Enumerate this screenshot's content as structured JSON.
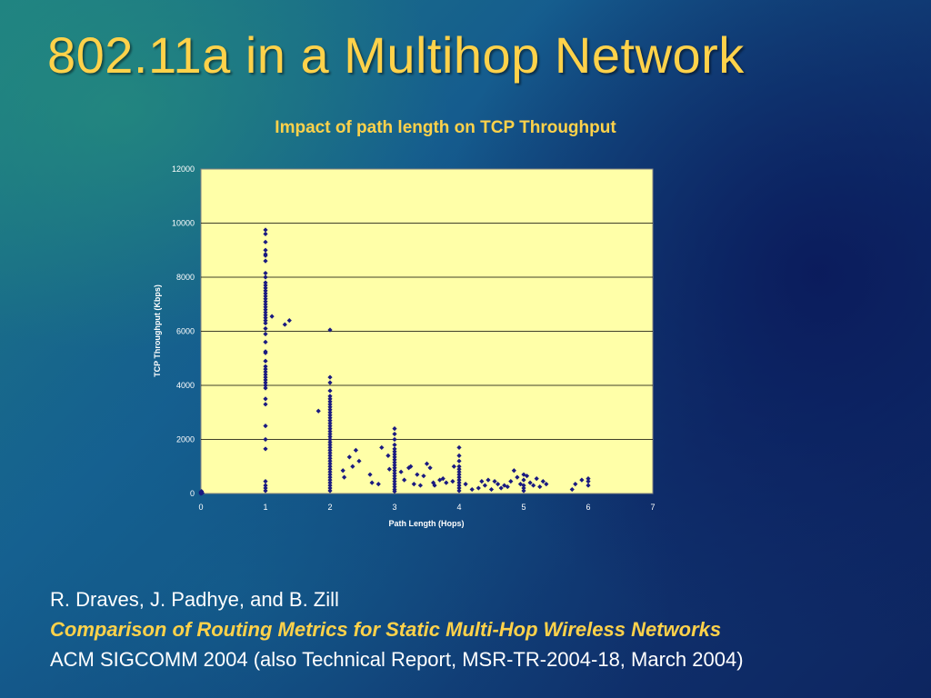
{
  "slide": {
    "title": "802.11a in a Multihop Network",
    "authors": "R. Draves, J. Padhye, and B. Zill",
    "paper_title": "Comparison of Routing Metrics for Static Multi-Hop Wireless Networks",
    "venue": "ACM SIGCOMM 2004 (also Technical Report, MSR-TR-2004-18, March 2004)"
  },
  "colors": {
    "title": "#ffd24a",
    "plot_bg": "#ffffa8",
    "points": "#1a1a80",
    "gridline": "#000000"
  },
  "chart_data": {
    "type": "scatter",
    "title": "Impact of path length on TCP Throughput",
    "xlabel": "Path Length (Hops)",
    "ylabel": "TCP Throughput (Kbps)",
    "xlim": [
      0,
      7
    ],
    "ylim": [
      0,
      12000
    ],
    "xticks": [
      0,
      1,
      2,
      3,
      4,
      5,
      6,
      7
    ],
    "yticks": [
      0,
      2000,
      4000,
      6000,
      8000,
      10000,
      12000
    ],
    "grid": "horizontal",
    "legend": "none",
    "points": [
      [
        0,
        0
      ],
      [
        0,
        50
      ],
      [
        0.02,
        20
      ],
      [
        0.01,
        80
      ],
      [
        1,
        9750
      ],
      [
        1,
        9600
      ],
      [
        1,
        9300
      ],
      [
        1,
        9000
      ],
      [
        1,
        8850
      ],
      [
        1,
        8800
      ],
      [
        1,
        8600
      ],
      [
        1,
        8150
      ],
      [
        1,
        8000
      ],
      [
        1,
        7800
      ],
      [
        1,
        7700
      ],
      [
        1,
        7600
      ],
      [
        1,
        7500
      ],
      [
        1,
        7400
      ],
      [
        1,
        7300
      ],
      [
        1,
        7200
      ],
      [
        1,
        7100
      ],
      [
        1,
        7000
      ],
      [
        1,
        6900
      ],
      [
        1,
        6800
      ],
      [
        1,
        6700
      ],
      [
        1,
        6600
      ],
      [
        1,
        6500
      ],
      [
        1,
        6400
      ],
      [
        1,
        6300
      ],
      [
        1,
        6100
      ],
      [
        1,
        5900
      ],
      [
        1,
        5600
      ],
      [
        1,
        5250
      ],
      [
        1,
        5200
      ],
      [
        1,
        4900
      ],
      [
        1,
        4700
      ],
      [
        1,
        4600
      ],
      [
        1,
        4500
      ],
      [
        1,
        4400
      ],
      [
        1,
        4300
      ],
      [
        1,
        4200
      ],
      [
        1,
        4100
      ],
      [
        1,
        4000
      ],
      [
        1,
        3900
      ],
      [
        1,
        3500
      ],
      [
        1,
        3300
      ],
      [
        1,
        2500
      ],
      [
        1,
        2000
      ],
      [
        1,
        1650
      ],
      [
        1,
        450
      ],
      [
        1,
        300
      ],
      [
        1,
        200
      ],
      [
        1,
        100
      ],
      [
        1.1,
        6550
      ],
      [
        1.3,
        6250
      ],
      [
        1.37,
        6400
      ],
      [
        2,
        6050
      ],
      [
        2,
        4300
      ],
      [
        2,
        4100
      ],
      [
        2,
        3800
      ],
      [
        2,
        3600
      ],
      [
        2,
        3500
      ],
      [
        2,
        3400
      ],
      [
        2,
        3300
      ],
      [
        2,
        3200
      ],
      [
        2,
        3100
      ],
      [
        2,
        3000
      ],
      [
        2,
        2900
      ],
      [
        2,
        2800
      ],
      [
        2,
        2700
      ],
      [
        2,
        2600
      ],
      [
        2,
        2500
      ],
      [
        2,
        2400
      ],
      [
        2,
        2300
      ],
      [
        2,
        2200
      ],
      [
        2,
        2100
      ],
      [
        2,
        2000
      ],
      [
        2,
        1900
      ],
      [
        2,
        1800
      ],
      [
        2,
        1700
      ],
      [
        2,
        1600
      ],
      [
        2,
        1500
      ],
      [
        2,
        1400
      ],
      [
        2,
        1300
      ],
      [
        2,
        1200
      ],
      [
        2,
        1100
      ],
      [
        2,
        1000
      ],
      [
        2,
        900
      ],
      [
        2,
        800
      ],
      [
        2,
        700
      ],
      [
        2,
        600
      ],
      [
        2,
        500
      ],
      [
        2,
        400
      ],
      [
        2,
        300
      ],
      [
        2,
        200
      ],
      [
        2,
        100
      ],
      [
        1.82,
        3050
      ],
      [
        2.2,
        850
      ],
      [
        2.22,
        600
      ],
      [
        2.3,
        1350
      ],
      [
        2.35,
        1000
      ],
      [
        2.4,
        1600
      ],
      [
        2.45,
        1200
      ],
      [
        2.62,
        700
      ],
      [
        2.65,
        400
      ],
      [
        2.75,
        350
      ],
      [
        2.8,
        1700
      ],
      [
        2.9,
        1400
      ],
      [
        2.92,
        900
      ],
      [
        3,
        2400
      ],
      [
        3,
        2200
      ],
      [
        3,
        2000
      ],
      [
        3,
        1800
      ],
      [
        3,
        1650
      ],
      [
        3,
        1550
      ],
      [
        3,
        1450
      ],
      [
        3,
        1350
      ],
      [
        3,
        1250
      ],
      [
        3,
        1150
      ],
      [
        3,
        1050
      ],
      [
        3,
        950
      ],
      [
        3,
        850
      ],
      [
        3,
        750
      ],
      [
        3,
        650
      ],
      [
        3,
        550
      ],
      [
        3,
        450
      ],
      [
        3,
        350
      ],
      [
        3,
        250
      ],
      [
        3,
        150
      ],
      [
        3,
        80
      ],
      [
        3.1,
        800
      ],
      [
        3.15,
        500
      ],
      [
        3.22,
        950
      ],
      [
        3.25,
        1000
      ],
      [
        3.3,
        350
      ],
      [
        3.35,
        700
      ],
      [
        3.4,
        300
      ],
      [
        3.45,
        650
      ],
      [
        3.5,
        1100
      ],
      [
        3.55,
        950
      ],
      [
        3.6,
        400
      ],
      [
        3.62,
        300
      ],
      [
        3.7,
        500
      ],
      [
        3.75,
        550
      ],
      [
        3.8,
        400
      ],
      [
        3.9,
        450
      ],
      [
        3.92,
        1000
      ],
      [
        4,
        1700
      ],
      [
        4,
        1400
      ],
      [
        4,
        1200
      ],
      [
        4,
        1000
      ],
      [
        4,
        900
      ],
      [
        4,
        800
      ],
      [
        4,
        700
      ],
      [
        4,
        600
      ],
      [
        4,
        500
      ],
      [
        4,
        400
      ],
      [
        4,
        300
      ],
      [
        4,
        200
      ],
      [
        4,
        100
      ],
      [
        4.1,
        350
      ],
      [
        4.2,
        150
      ],
      [
        4.3,
        200
      ],
      [
        4.35,
        450
      ],
      [
        4.4,
        300
      ],
      [
        4.45,
        500
      ],
      [
        4.5,
        150
      ],
      [
        4.55,
        450
      ],
      [
        4.6,
        350
      ],
      [
        4.65,
        200
      ],
      [
        4.7,
        300
      ],
      [
        4.75,
        250
      ],
      [
        4.8,
        450
      ],
      [
        4.85,
        850
      ],
      [
        4.9,
        600
      ],
      [
        4.95,
        350
      ],
      [
        5,
        200
      ],
      [
        5,
        300
      ],
      [
        5,
        700
      ],
      [
        5,
        500
      ],
      [
        5,
        100
      ],
      [
        5.05,
        650
      ],
      [
        5.1,
        400
      ],
      [
        5.15,
        300
      ],
      [
        5.2,
        550
      ],
      [
        5.25,
        250
      ],
      [
        5.3,
        450
      ],
      [
        5.35,
        350
      ],
      [
        5.75,
        150
      ],
      [
        5.8,
        350
      ],
      [
        5.9,
        500
      ],
      [
        6,
        550
      ],
      [
        6,
        300
      ],
      [
        6,
        450
      ]
    ]
  }
}
